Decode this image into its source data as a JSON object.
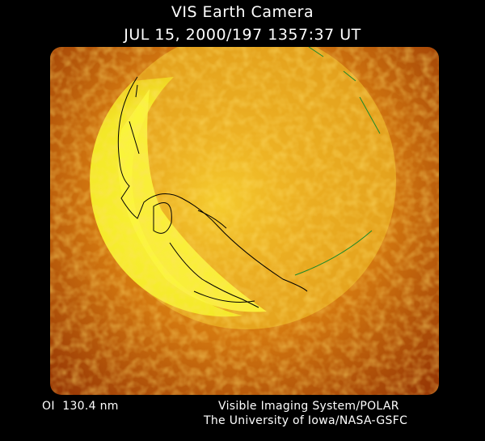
{
  "header": {
    "title": "VIS Earth Camera",
    "datetime": "JUL 15, 2000/197 1357:37 UT"
  },
  "footer": {
    "wavelength": "OI  130.4 nm",
    "credit_line1": "Visible Imaging System/POLAR",
    "credit_line2": "The University of Iowa/NASA-GSFC"
  },
  "colors": {
    "background": "#000000",
    "glow": "#c86a10",
    "earth": "#f4f020",
    "coastline": "#000000",
    "grid_lines": "#1a8a2a"
  }
}
